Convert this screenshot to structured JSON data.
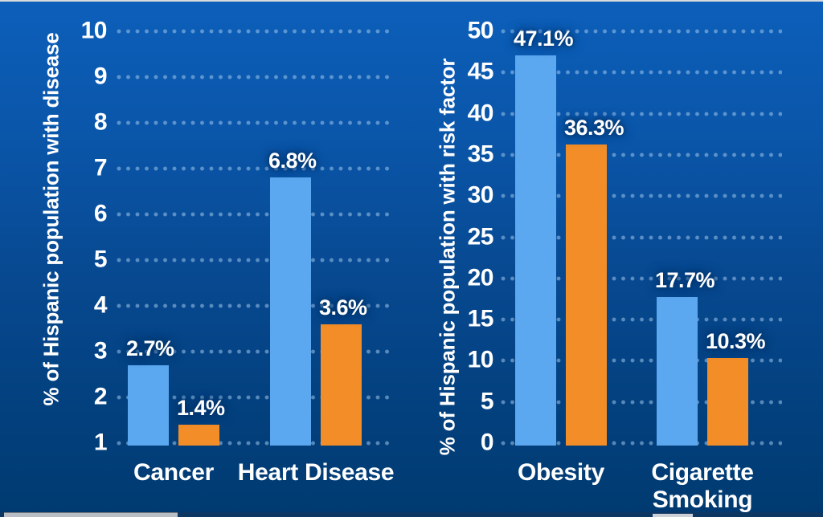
{
  "colors": {
    "background_top": "#0c5fba",
    "background_bottom": "#003a70",
    "bar_blue": "#5BA8F0",
    "bar_orange": "#F28D28",
    "grid_dot": "#A6CBEE",
    "text": "#FFFFFF"
  },
  "decor": {
    "top_edge_color": "#D8DADC",
    "bottom_track_color": "#0D3763",
    "scrollbar_thumb_color": "#B9BEC6",
    "bottom_patch_color": "#CBD0D7"
  },
  "chart_data": [
    {
      "type": "bar",
      "title": "",
      "ylabel": "% of Hispanic population with disease",
      "xlabel": "",
      "categories": [
        "Cancer",
        "Heart Disease"
      ],
      "category_lines": [
        [
          "Cancer"
        ],
        [
          "Heart Disease"
        ]
      ],
      "series": [
        {
          "name": "blue",
          "color": "#5BA8F0",
          "values": [
            2.7,
            6.8
          ],
          "labels": [
            "2.7%",
            "6.8%"
          ]
        },
        {
          "name": "orange",
          "color": "#F28D28",
          "values": [
            1.4,
            3.6
          ],
          "labels": [
            "1.4%",
            "3.6%"
          ]
        }
      ],
      "ylim": [
        1,
        10
      ],
      "ytick_step": 1,
      "yticks": [
        "10",
        "9",
        "8",
        "7",
        "6",
        "5",
        "4",
        "3",
        "2",
        "1"
      ],
      "grid": "dotted-horizontal",
      "legend": "none"
    },
    {
      "type": "bar",
      "title": "",
      "ylabel": "% of Hispanic population with risk factor",
      "xlabel": "",
      "categories": [
        "Obesity",
        "Cigarette Smoking"
      ],
      "category_lines": [
        [
          "Obesity"
        ],
        [
          "Cigarette",
          "Smoking"
        ]
      ],
      "series": [
        {
          "name": "blue",
          "color": "#5BA8F0",
          "values": [
            47.1,
            17.7
          ],
          "labels": [
            "47.1%",
            "17.7%"
          ]
        },
        {
          "name": "orange",
          "color": "#F28D28",
          "values": [
            36.3,
            10.3
          ],
          "labels": [
            "36.3%",
            "10.3%"
          ]
        }
      ],
      "ylim": [
        0,
        50
      ],
      "ytick_step": 5,
      "yticks": [
        "50",
        "45",
        "40",
        "35",
        "30",
        "25",
        "20",
        "15",
        "10",
        "5",
        "0"
      ],
      "grid": "dotted-horizontal",
      "legend": "none"
    }
  ]
}
